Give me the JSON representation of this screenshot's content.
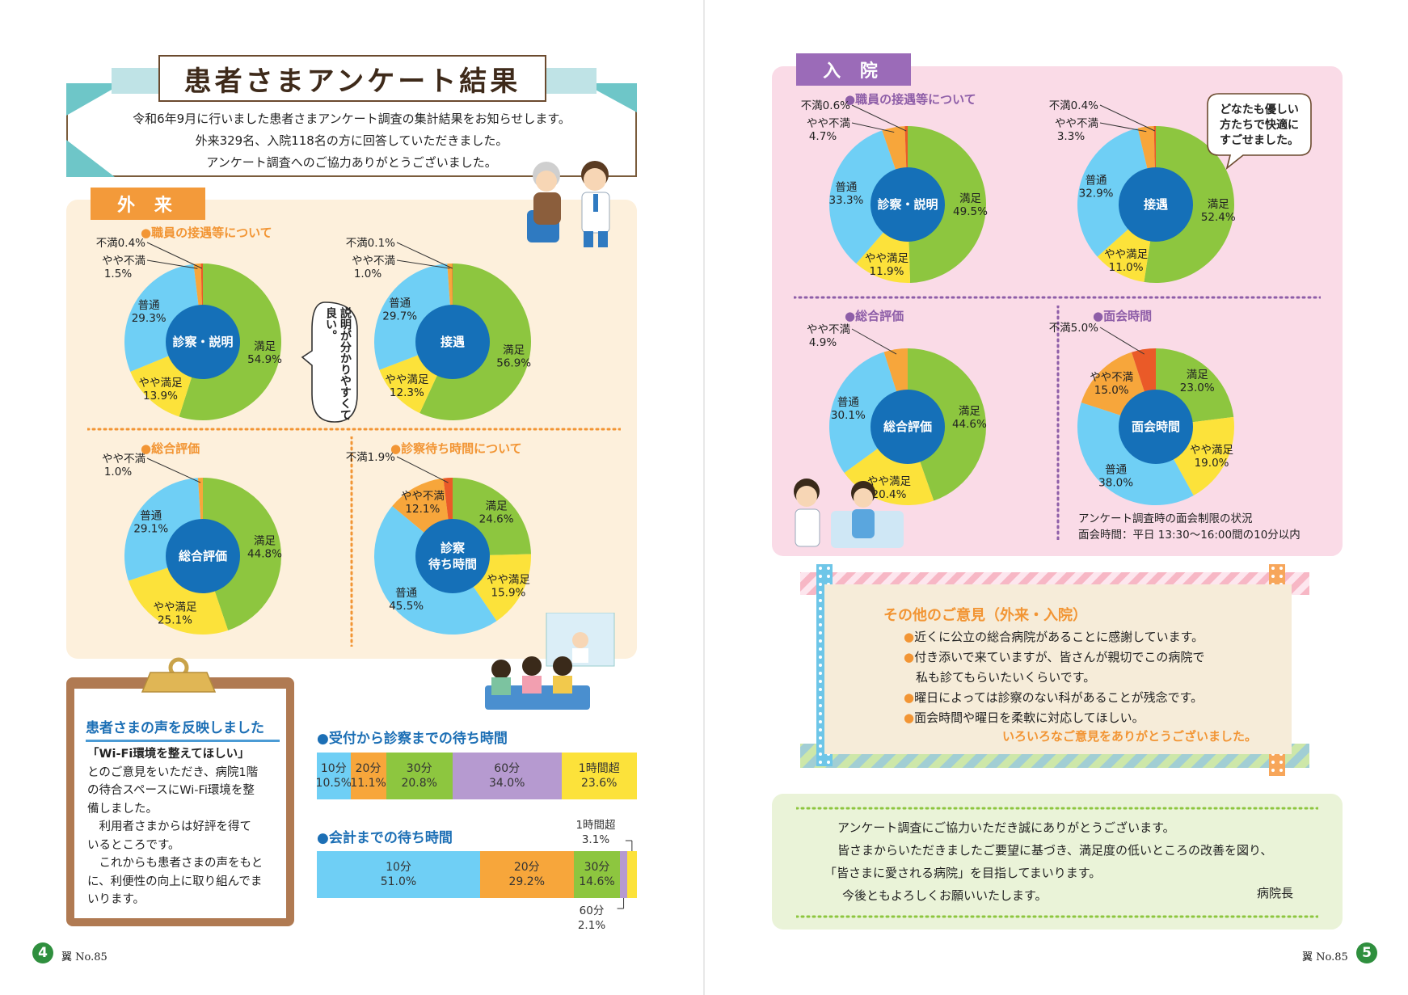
{
  "title": "患者さまアンケート結果",
  "intro": [
    "令和6年9月に行いました患者さまアンケート調査の集計結果をお知らせします。",
    "外来329名、入院118名の方に回答していただきました。",
    "アンケート調査へのご協力ありがとうございました。"
  ],
  "outpatient": {
    "tag": "外 来",
    "bubble": "説明が分かりやすくて良い。"
  },
  "inpatient": {
    "tag": "入 院",
    "bubble": [
      "どなたも優しい",
      "方たちで快適に",
      "すごせました。"
    ],
    "note": [
      "アンケート調査時の面会制限の状況",
      "面会時間：平日 13:30～16:00間の10分以内"
    ]
  },
  "colors": {
    "satisfied": "#8dc63f",
    "somewhat_satisfied": "#fce23a",
    "normal": "#6fcff5",
    "somewhat_dissatisfied": "#f7a63b",
    "dissatisfied": "#ea5a28",
    "center": "#1570b8",
    "purple": "#b69ad0"
  },
  "chart_data": [
    {
      "id": "out1",
      "type": "pie",
      "title": "●職員の接遇等について",
      "center": "診察・説明",
      "slices": [
        {
          "label": "満足",
          "value": 54.9
        },
        {
          "label": "やや満足",
          "value": 13.9
        },
        {
          "label": "普通",
          "value": 29.3
        },
        {
          "label": "やや不満",
          "value": 1.5
        },
        {
          "label": "不満",
          "value": 0.4
        }
      ]
    },
    {
      "id": "out2",
      "type": "pie",
      "title": "",
      "center": "接遇",
      "slices": [
        {
          "label": "満足",
          "value": 56.9
        },
        {
          "label": "やや満足",
          "value": 12.3
        },
        {
          "label": "普通",
          "value": 29.7
        },
        {
          "label": "やや不満",
          "value": 1.0
        },
        {
          "label": "不満",
          "value": 0.1
        }
      ]
    },
    {
      "id": "out3",
      "type": "pie",
      "title": "●総合評価",
      "center": "総合評価",
      "slices": [
        {
          "label": "満足",
          "value": 44.8
        },
        {
          "label": "やや満足",
          "value": 25.1
        },
        {
          "label": "普通",
          "value": 29.1
        },
        {
          "label": "やや不満",
          "value": 1.0
        }
      ]
    },
    {
      "id": "out4",
      "type": "pie",
      "title": "●診察待ち時間について",
      "center": "診察\n待ち時間",
      "slices": [
        {
          "label": "満足",
          "value": 24.6
        },
        {
          "label": "やや満足",
          "value": 15.9
        },
        {
          "label": "普通",
          "value": 45.5
        },
        {
          "label": "やや不満",
          "value": 12.1
        },
        {
          "label": "不満",
          "value": 1.9
        }
      ]
    },
    {
      "id": "in1",
      "type": "pie",
      "title": "●職員の接遇等について",
      "center": "診察・説明",
      "slices": [
        {
          "label": "満足",
          "value": 49.5
        },
        {
          "label": "やや満足",
          "value": 11.9
        },
        {
          "label": "普通",
          "value": 33.3
        },
        {
          "label": "やや不満",
          "value": 4.7
        },
        {
          "label": "不満",
          "value": 0.6
        }
      ]
    },
    {
      "id": "in2",
      "type": "pie",
      "title": "",
      "center": "接遇",
      "slices": [
        {
          "label": "満足",
          "value": 52.4
        },
        {
          "label": "やや満足",
          "value": 11.0
        },
        {
          "label": "普通",
          "value": 32.9
        },
        {
          "label": "やや不満",
          "value": 3.3
        },
        {
          "label": "不満",
          "value": 0.4
        }
      ]
    },
    {
      "id": "in3",
      "type": "pie",
      "title": "●総合評価",
      "center": "総合評価",
      "slices": [
        {
          "label": "満足",
          "value": 44.6
        },
        {
          "label": "やや満足",
          "value": 20.4
        },
        {
          "label": "普通",
          "value": 30.1
        },
        {
          "label": "やや不満",
          "value": 4.9
        }
      ]
    },
    {
      "id": "in4",
      "type": "pie",
      "title": "●面会時間",
      "center": "面会時間",
      "slices": [
        {
          "label": "満足",
          "value": 23.0
        },
        {
          "label": "やや満足",
          "value": 19.0
        },
        {
          "label": "普通",
          "value": 38.0
        },
        {
          "label": "やや不満",
          "value": 15.0
        },
        {
          "label": "不満",
          "value": 5.0
        }
      ]
    },
    {
      "id": "bar1",
      "type": "bar",
      "title": "●受付から診察までの待ち時間",
      "categories": [
        "10分",
        "20分",
        "30分",
        "60分",
        "1時間超"
      ],
      "values": [
        10.5,
        11.1,
        20.8,
        34.0,
        23.6
      ]
    },
    {
      "id": "bar2",
      "type": "bar",
      "title": "●会計までの待ち時間",
      "categories": [
        "10分",
        "20分",
        "30分",
        "60分",
        "1時間超"
      ],
      "values": [
        51.0,
        29.2,
        14.6,
        2.1,
        3.1
      ]
    }
  ],
  "patient_voice": {
    "title": "患者さまの声を反映しました",
    "quote": "「Wi-Fi環境を整えてほしい」",
    "lines": [
      "とのご意見をいただき、病院1階",
      "の待合スペースにWi-Fi環境を整",
      "備しました。",
      "　利用者さまからは好評を得て",
      "いるところです。",
      "　これからも患者さまの声をもと",
      "に、利便性の向上に取り組んでま",
      "いります。"
    ]
  },
  "opinions": {
    "title": "その他のご意見（外来・入院）",
    "items": [
      "近くに公立の総合病院があることに感謝しています。",
      "付き添いで来ていますが、皆さんが親切でこの病院で",
      "私も診てもらいたいくらいです。",
      "曜日によっては診察のない科があることが残念です。",
      "面会時間や曜日を柔軟に対応してほしい。"
    ],
    "thanks": "いろいろなご意見をありがとうございました。"
  },
  "message": {
    "lines": [
      "アンケート調査にご協力いただき誠にありがとうございます。",
      "皆さまからいただきましたご要望に基づき、満足度の低いところの改善を図り、",
      "「皆さまに愛される病院」を目指してまいります。",
      "今後ともよろしくお願いいたします。"
    ],
    "sign": "病院長"
  },
  "footer": {
    "left_num": "4",
    "right_num": "5",
    "issue": "翼 No.85"
  }
}
